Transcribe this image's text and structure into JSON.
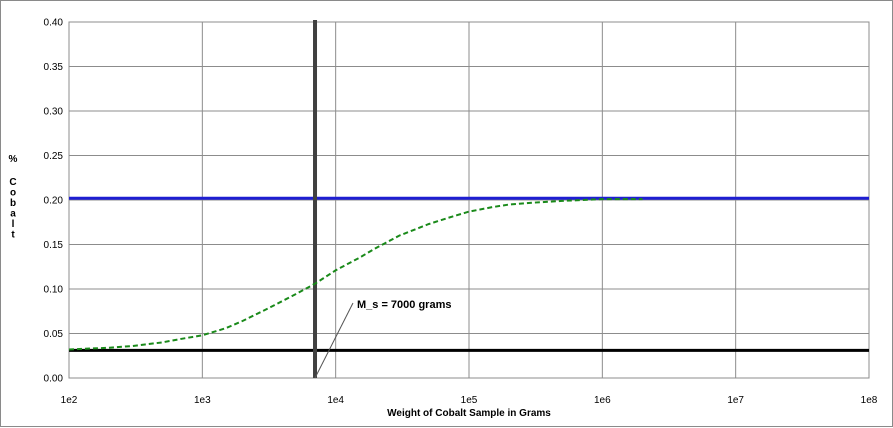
{
  "chart_data": {
    "type": "line",
    "title": "",
    "xlabel": "Weight of Cobalt Sample in Grams",
    "ylabel_chars": [
      "%",
      "C",
      "o",
      "b",
      "a",
      "l",
      "t"
    ],
    "xscale": "log",
    "xlim": [
      100,
      100000000
    ],
    "ylim": [
      0,
      0.4
    ],
    "grid": true,
    "legend": "none",
    "x_ticks": [
      {
        "value": 100,
        "label": "1e2"
      },
      {
        "value": 1000,
        "label": "1e3"
      },
      {
        "value": 10000,
        "label": "1e4"
      },
      {
        "value": 100000,
        "label": "1e5"
      },
      {
        "value": 1000000,
        "label": "1e6"
      },
      {
        "value": 10000000,
        "label": "1e7"
      },
      {
        "value": 100000000,
        "label": "1e8"
      }
    ],
    "y_ticks": [
      {
        "value": 0.0,
        "label": "0.00"
      },
      {
        "value": 0.05,
        "label": "0.05"
      },
      {
        "value": 0.1,
        "label": "0.10"
      },
      {
        "value": 0.15,
        "label": "0.15"
      },
      {
        "value": 0.2,
        "label": "0.20"
      },
      {
        "value": 0.25,
        "label": "0.25"
      },
      {
        "value": 0.3,
        "label": "0.30"
      },
      {
        "value": 0.35,
        "label": "0.35"
      },
      {
        "value": 0.4,
        "label": "0.40"
      }
    ],
    "series": [
      {
        "style": "dashed",
        "color": "#1a8a1a",
        "x": [
          100,
          200,
          300,
          500,
          700,
          1000,
          1500,
          2000,
          3000,
          5000,
          7000,
          10000,
          15000,
          20000,
          30000,
          50000,
          70000,
          100000,
          150000,
          200000,
          300000,
          500000,
          700000,
          1000000,
          2000000
        ],
        "y": [
          0.032,
          0.034,
          0.036,
          0.04,
          0.044,
          0.048,
          0.056,
          0.064,
          0.077,
          0.094,
          0.106,
          0.121,
          0.135,
          0.146,
          0.16,
          0.173,
          0.18,
          0.187,
          0.192,
          0.195,
          0.197,
          0.199,
          0.2,
          0.201,
          0.201
        ]
      }
    ],
    "reference_lines": [
      {
        "axis": "y",
        "value": 0.202,
        "color": "#1e1ed2"
      },
      {
        "axis": "y",
        "value": 0.031,
        "color": "#000000"
      },
      {
        "axis": "x",
        "value": 7000,
        "color": "#404040"
      }
    ],
    "annotation": {
      "text": "M_s = 7000 grams",
      "x": 7000,
      "y": 0.0
    }
  }
}
